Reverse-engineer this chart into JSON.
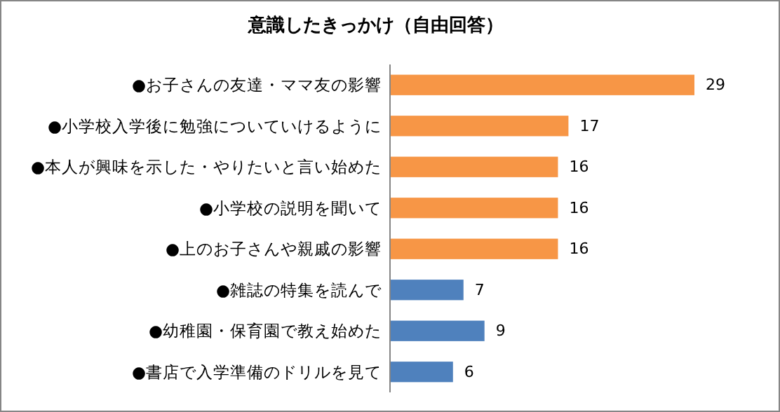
{
  "chart_data": {
    "type": "bar",
    "orientation": "horizontal",
    "title": "意識したきっかけ（自由回答）",
    "categories": [
      "●お子さんの友達・ママ友の影響",
      "●小学校入学後に勉強についていけるように",
      "●本人が興味を示した・やりたいと言い始めた",
      "●小学校の説明を聞いて",
      "●上のお子さんや親戚の影響",
      "●雑誌の特集を読んで",
      "●幼稚園・保育園で教え始めた",
      "●書店で入学準備のドリルを見て"
    ],
    "values": [
      29,
      17,
      16,
      16,
      16,
      7,
      9,
      6
    ],
    "colors": [
      "#f79646",
      "#f79646",
      "#f79646",
      "#f79646",
      "#f79646",
      "#4f81bd",
      "#4f81bd",
      "#4f81bd"
    ],
    "data_labels": true,
    "tick_labels": "y"
  }
}
